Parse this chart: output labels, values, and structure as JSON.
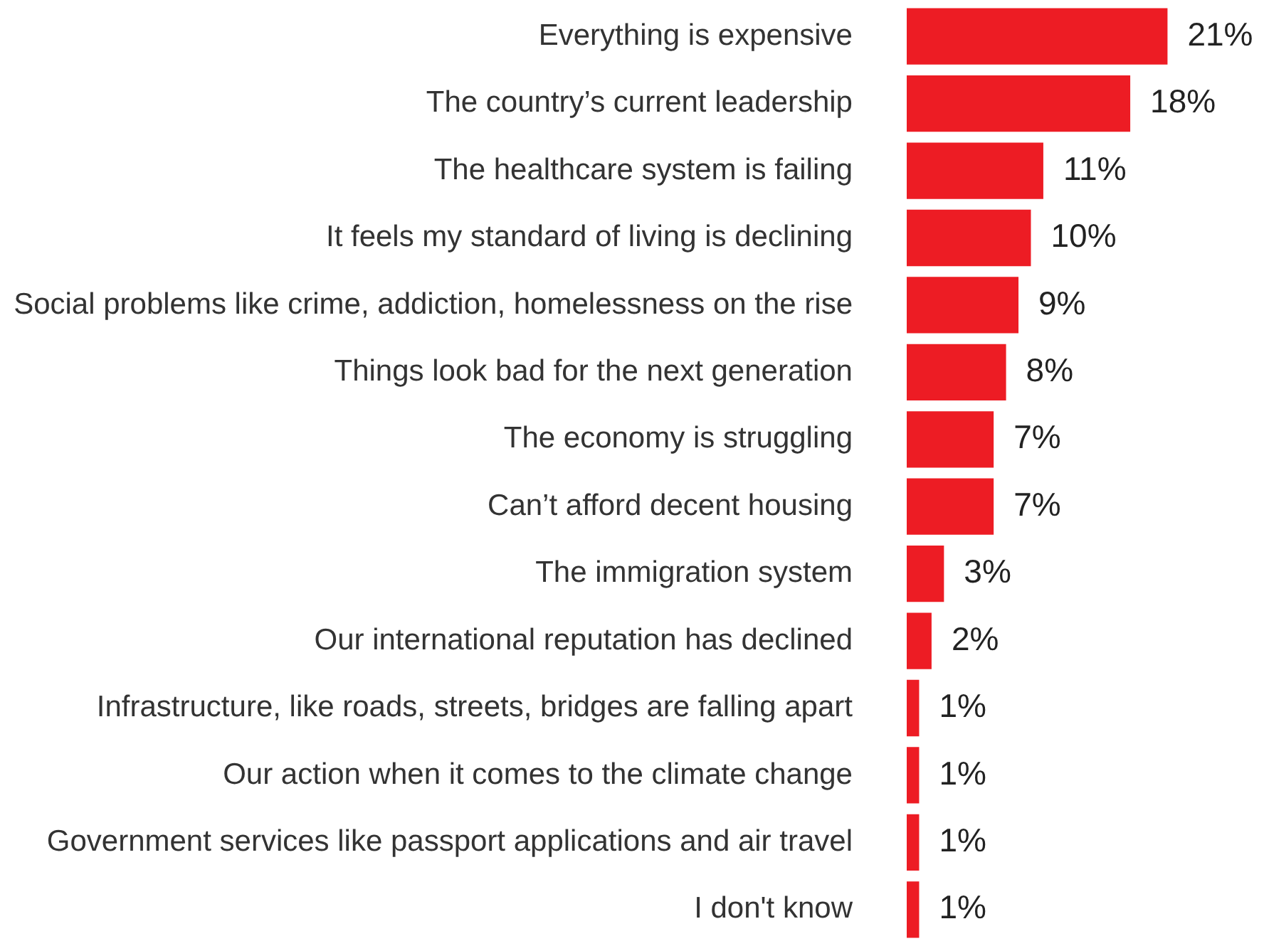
{
  "chart_data": {
    "type": "bar",
    "orientation": "horizontal",
    "categories": [
      "Everything is expensive",
      "The country’s current leadership",
      "The healthcare system is failing",
      "It feels my standard of living is declining",
      "Social problems like crime, addiction, homelessness on the rise",
      "Things look bad for the next generation",
      "The economy is struggling",
      "Can’t afford decent housing",
      "The immigration system",
      "Our international reputation has declined",
      "Infrastructure, like roads, streets, bridges are falling apart",
      "Our action when it comes to the climate change",
      "Government services like passport applications and air travel",
      "I don't know"
    ],
    "values": [
      21,
      18,
      11,
      10,
      9,
      8,
      7,
      7,
      3,
      2,
      1,
      1,
      1,
      1
    ],
    "value_labels": [
      "21%",
      "18%",
      "11%",
      "10%",
      "9%",
      "8%",
      "7%",
      "7%",
      "3%",
      "2%",
      "1%",
      "1%",
      "1%",
      "1%"
    ],
    "color": "#ed1c24",
    "tick_labels": "y"
  }
}
